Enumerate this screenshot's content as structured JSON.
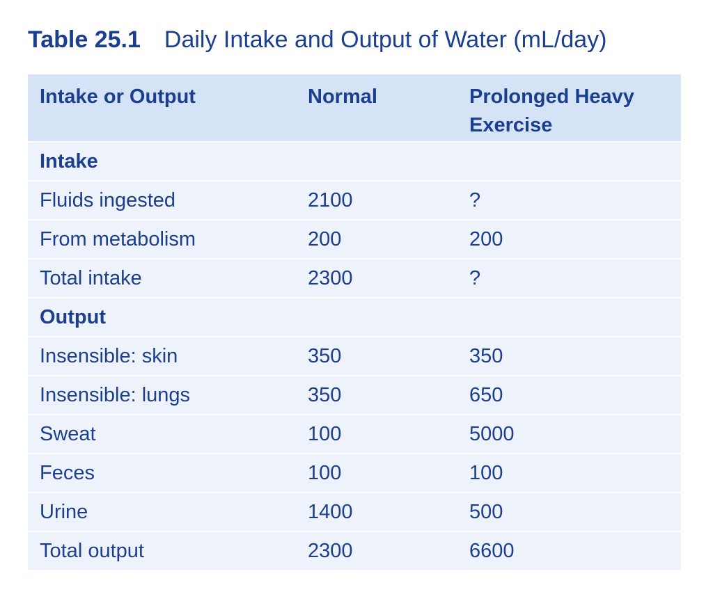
{
  "title": {
    "label": "Table 25.1",
    "text": "Daily Intake and Output of Water (mL/day)"
  },
  "table": {
    "header": [
      "Intake or Output",
      "Normal",
      "Prolonged Heavy Exercise"
    ],
    "rows": [
      [
        "Intake"
      ],
      [
        "Fluids ingested",
        2100,
        "?"
      ],
      [
        "From metabolism",
        200,
        200
      ],
      [
        "Total intake",
        2300,
        "?"
      ],
      [
        "Output"
      ],
      [
        "Insensible: skin",
        350,
        350
      ],
      [
        "Insensible: lungs",
        350,
        650
      ],
      [
        "Sweat",
        100,
        5000
      ],
      [
        "Feces",
        100,
        100
      ],
      [
        "Urine",
        1400,
        500
      ],
      [
        "Total output",
        2300,
        6600
      ]
    ]
  }
}
